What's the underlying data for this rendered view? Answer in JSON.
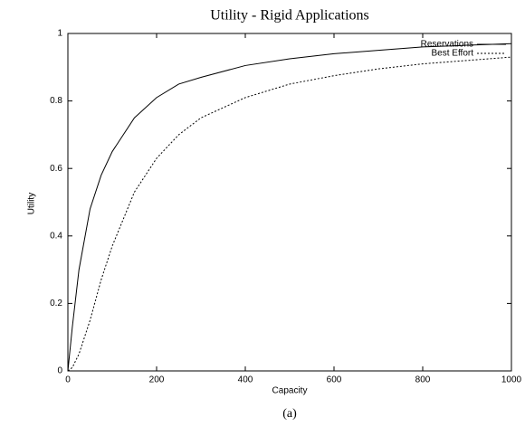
{
  "chart_data": {
    "type": "line",
    "title": "Utility - Rigid Applications",
    "caption": "(a)",
    "x_label": "Capacity",
    "y_label": "Utility",
    "x": [
      0,
      10,
      25,
      50,
      75,
      100,
      150,
      200,
      250,
      300,
      400,
      500,
      600,
      700,
      800,
      900,
      1000
    ],
    "series": [
      {
        "name": "Reservations",
        "color": "#000000",
        "dash": "solid",
        "values": [
          0,
          0.13,
          0.3,
          0.48,
          0.58,
          0.65,
          0.75,
          0.81,
          0.85,
          0.87,
          0.905,
          0.925,
          0.94,
          0.95,
          0.96,
          0.965,
          0.97
        ]
      },
      {
        "name": "Best Effort",
        "color": "#000000",
        "dash": "dotted",
        "values": [
          0,
          0.01,
          0.05,
          0.15,
          0.27,
          0.37,
          0.53,
          0.63,
          0.7,
          0.75,
          0.81,
          0.85,
          0.875,
          0.895,
          0.91,
          0.92,
          0.93
        ]
      }
    ],
    "xlim": [
      0,
      1000
    ],
    "xticks": [
      0,
      200,
      400,
      600,
      800,
      1000
    ],
    "ylim": [
      0,
      1
    ],
    "yticks": [
      0,
      0.2,
      0.4,
      0.6,
      0.8,
      1
    ],
    "legend": "upper right",
    "grid": false
  }
}
